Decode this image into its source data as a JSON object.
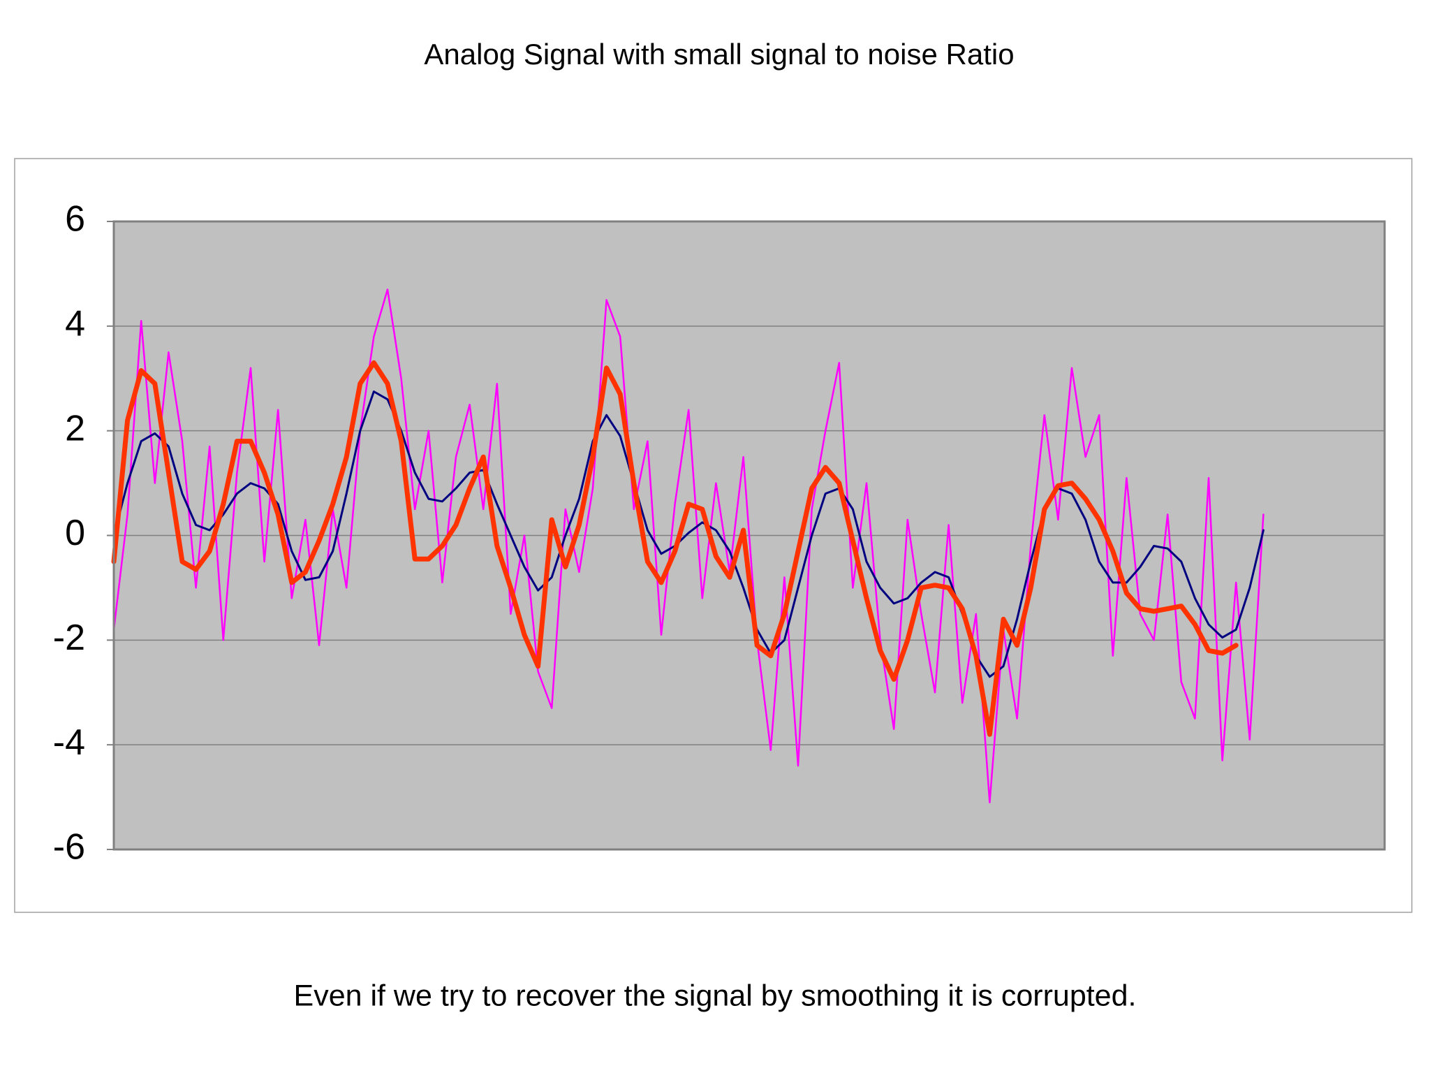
{
  "chart_data": {
    "type": "line",
    "title": "Analog Signal with small signal to noise Ratio",
    "caption": "Even if we try to recover the signal by smoothing it is corrupted.",
    "ylim": [
      -6,
      6
    ],
    "yticks": [
      -6,
      -4,
      -2,
      0,
      2,
      4,
      6
    ],
    "grid": true,
    "series": [
      {
        "color": "#ff00ff",
        "values": [
          -1.8,
          0.4,
          4.1,
          1.0,
          3.5,
          1.8,
          -1.0,
          1.7,
          -2.0,
          1.2,
          3.2,
          -0.5,
          2.4,
          -1.2,
          0.3,
          -2.1,
          0.5,
          -1.0,
          2.0,
          3.8,
          4.7,
          3.0,
          0.5,
          2.0,
          -0.9,
          1.5,
          2.5,
          0.5,
          2.9,
          -1.5,
          0.0,
          -2.6,
          -3.3,
          0.5,
          -0.7,
          0.9,
          4.5,
          3.8,
          0.5,
          1.8,
          -1.9,
          0.6,
          2.4,
          -1.2,
          1.0,
          -0.7,
          1.5,
          -2.0,
          -4.1,
          -0.8,
          -4.4,
          0.5,
          2.0,
          3.3,
          -1.0,
          1.0,
          -2.0,
          -3.7,
          0.3,
          -1.5,
          -3.0,
          0.2,
          -3.2,
          -1.5,
          -5.1,
          -1.8,
          -3.5,
          -0.2,
          2.3,
          0.3,
          3.2,
          1.5,
          2.3,
          -2.3,
          1.1,
          -1.5,
          -2.0,
          0.4,
          -2.8,
          -3.5,
          1.1,
          -4.3,
          -0.9,
          -3.9,
          0.4
        ]
      },
      {
        "color": "#000080",
        "values": [
          0,
          1.0,
          1.8,
          1.95,
          1.7,
          0.8,
          0.2,
          0.1,
          0.4,
          0.8,
          1.0,
          0.9,
          0.6,
          -0.3,
          -0.85,
          -0.8,
          -0.3,
          0.8,
          2.0,
          2.75,
          2.6,
          2.0,
          1.2,
          0.7,
          0.65,
          0.9,
          1.2,
          1.25,
          0.6,
          0.0,
          -0.6,
          -1.05,
          -0.8,
          0.0,
          0.7,
          1.8,
          2.3,
          1.9,
          1.0,
          0.1,
          -0.35,
          -0.2,
          0.05,
          0.25,
          0.1,
          -0.3,
          -1.0,
          -1.8,
          -2.25,
          -2.0,
          -1.0,
          0.0,
          0.8,
          0.9,
          0.5,
          -0.5,
          -1.0,
          -1.3,
          -1.2,
          -0.9,
          -0.7,
          -0.8,
          -1.5,
          -2.3,
          -2.7,
          -2.5,
          -1.6,
          -0.5,
          0.5,
          0.9,
          0.8,
          0.3,
          -0.5,
          -0.9,
          -0.9,
          -0.6,
          -0.2,
          -0.25,
          -0.5,
          -1.2,
          -1.7,
          -1.95,
          -1.8,
          -1.0,
          0.1
        ]
      },
      {
        "color": "#ff3300",
        "values": [
          -0.5,
          2.2,
          3.15,
          2.9,
          1.2,
          -0.5,
          -0.65,
          -0.3,
          0.6,
          1.8,
          1.8,
          1.2,
          0.4,
          -0.9,
          -0.7,
          -0.1,
          0.6,
          1.5,
          2.9,
          3.3,
          2.9,
          1.8,
          -0.45,
          -0.45,
          -0.2,
          0.2,
          0.9,
          1.5,
          -0.2,
          -1.0,
          -1.9,
          -2.5,
          0.3,
          -0.6,
          0.2,
          1.5,
          3.2,
          2.7,
          1.0,
          -0.5,
          -0.9,
          -0.3,
          0.6,
          0.5,
          -0.4,
          -0.8,
          0.1,
          -2.1,
          -2.3,
          -1.5,
          -0.3,
          0.9,
          1.3,
          1.0,
          -0.1,
          -1.2,
          -2.2,
          -2.75,
          -2.0,
          -1.0,
          -0.95,
          -1.0,
          -1.4,
          -2.3,
          -3.8,
          -1.6,
          -2.1,
          -1.0,
          0.5,
          0.95,
          1.0,
          0.7,
          0.3,
          -0.3,
          -1.1,
          -1.4,
          -1.45,
          -1.4,
          -1.35,
          -1.7,
          -2.2,
          -2.25,
          -2.1,
          null,
          null
        ]
      }
    ]
  }
}
